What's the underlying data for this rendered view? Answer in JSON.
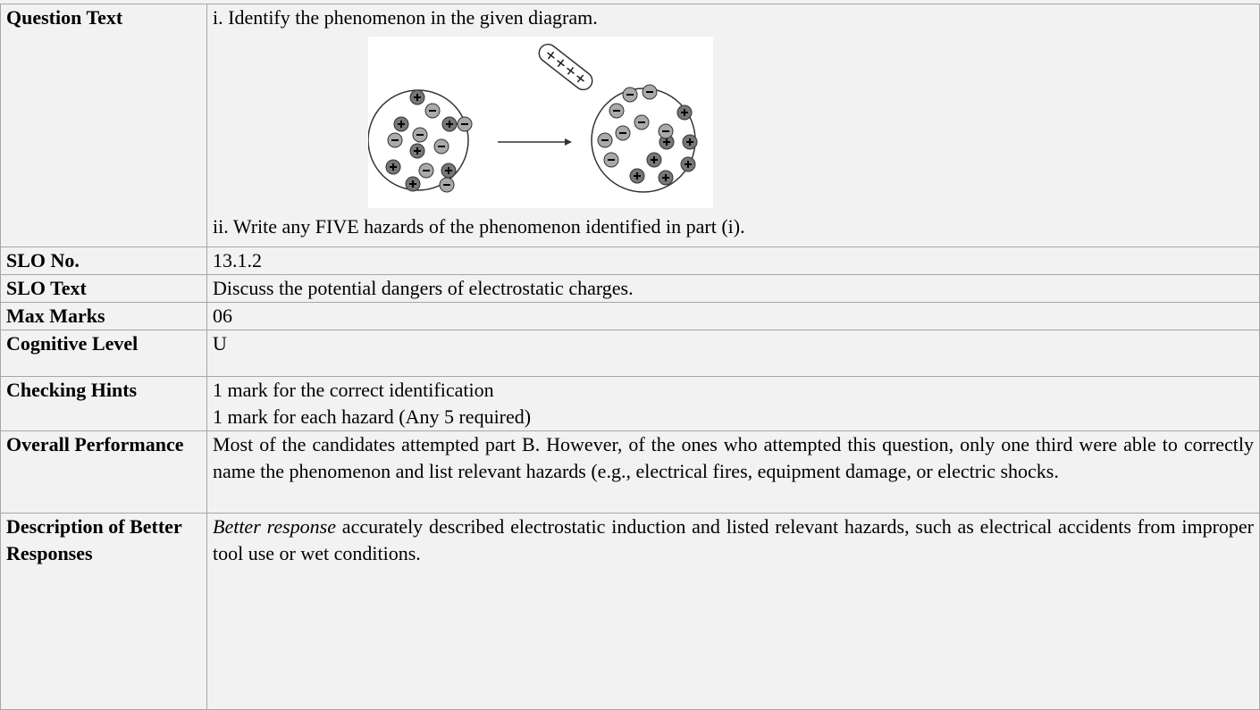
{
  "table": {
    "rows": [
      {
        "label": "Question Text",
        "lines": [
          "i. Identify the phenomenon in the given diagram.",
          "ii. Write any FIVE hazards of the phenomenon identified in part (i)."
        ]
      },
      {
        "label": "SLO No.",
        "lines": [
          "13.1.2"
        ]
      },
      {
        "label": "SLO Text",
        "lines": [
          "Discuss the potential dangers of electrostatic charges."
        ]
      },
      {
        "label": "Max Marks",
        "lines": [
          "06"
        ]
      },
      {
        "label": "Cognitive Level",
        "lines": [
          "U"
        ]
      },
      {
        "label": "Checking Hints",
        "lines": [
          "1 mark for the correct identification",
          "1 mark for each hazard (Any 5 required)"
        ]
      },
      {
        "label": "Overall Performance",
        "lines": [
          "Most of the candidates attempted part B. However, of the ones who attempted this question, only one third were able to correctly name the phenomenon and list relevant hazards (e.g., electrical fires, equipment damage, or electric shocks."
        ]
      },
      {
        "label": "Description of Better Responses",
        "emphasis": "Better response",
        "lines": [
          " accurately described electrostatic induction and listed relevant hazards, such as electrical accidents from improper tool use or wet conditions."
        ]
      }
    ]
  }
}
